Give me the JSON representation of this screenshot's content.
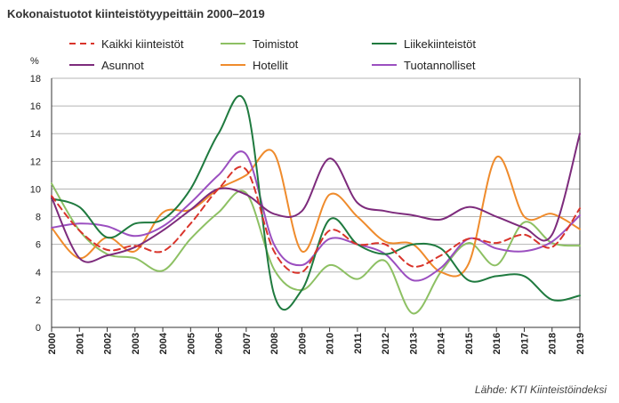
{
  "title": "Kokonaistuotot kiinteistötyypeittäin 2000–2019",
  "source": "Lähde: KTI Kiinteistöindeksi",
  "chart_data": {
    "type": "line",
    "title": "Kokonaistuotot kiinteistötyypeittäin 2000–2019",
    "ylabel": "%",
    "xlabel": "",
    "ylim": [
      0,
      18
    ],
    "yticks": [
      0,
      2,
      4,
      6,
      8,
      10,
      12,
      14,
      16,
      18
    ],
    "grid": "horizontal",
    "legend_position": "top",
    "categories": [
      "2000",
      "2001",
      "2002",
      "2003",
      "2004",
      "2005",
      "2006",
      "2007",
      "2008",
      "2009",
      "2010",
      "2011",
      "2012",
      "2013",
      "2014",
      "2015",
      "2016",
      "2017",
      "2018",
      "2019"
    ],
    "series": [
      {
        "name": "Kaikki kiinteistöt",
        "color": "#d9342b",
        "dashed": true,
        "values": [
          9.5,
          7.0,
          5.6,
          5.9,
          5.5,
          7.5,
          10.0,
          11.4,
          5.5,
          4.0,
          7.0,
          6.0,
          6.0,
          4.4,
          5.2,
          6.4,
          6.1,
          6.7,
          5.8,
          8.6
        ]
      },
      {
        "name": "Toimistot",
        "color": "#8dc063",
        "dashed": false,
        "values": [
          10.4,
          7.0,
          5.3,
          5.0,
          4.1,
          6.4,
          8.3,
          9.7,
          4.2,
          2.7,
          4.5,
          3.5,
          4.8,
          1.0,
          4.0,
          6.1,
          4.5,
          7.6,
          6.1,
          5.9
        ]
      },
      {
        "name": "Liikekiinteistöt",
        "color": "#1f7a3f",
        "dashed": false,
        "values": [
          9.3,
          8.7,
          6.5,
          7.5,
          7.8,
          10.0,
          14.0,
          16.1,
          2.4,
          2.7,
          7.8,
          6.0,
          5.3,
          6.0,
          5.7,
          3.4,
          3.7,
          3.7,
          2.0,
          2.3
        ]
      },
      {
        "name": "Asunnot",
        "color": "#7d2b7c",
        "dashed": false,
        "values": [
          9.4,
          5.0,
          5.2,
          5.8,
          7.0,
          8.5,
          10.0,
          9.6,
          8.2,
          8.4,
          12.2,
          9.0,
          8.4,
          8.1,
          7.8,
          8.7,
          8.0,
          7.2,
          6.7,
          14.0
        ]
      },
      {
        "name": "Hotellit",
        "color": "#ef8b2c",
        "dashed": false,
        "values": [
          7.2,
          5.0,
          6.5,
          5.5,
          8.3,
          8.5,
          10.0,
          11.0,
          12.6,
          5.5,
          9.6,
          8.0,
          6.2,
          6.0,
          4.0,
          4.6,
          12.3,
          8.0,
          8.2,
          7.1
        ]
      },
      {
        "name": "Tuotannolliset",
        "color": "#9b4fc0",
        "dashed": false,
        "values": [
          7.2,
          7.5,
          7.3,
          6.6,
          7.3,
          9.0,
          11.0,
          12.5,
          6.0,
          4.5,
          6.4,
          6.0,
          5.3,
          3.4,
          4.3,
          6.4,
          5.7,
          5.5,
          6.2,
          8.1
        ]
      }
    ]
  }
}
